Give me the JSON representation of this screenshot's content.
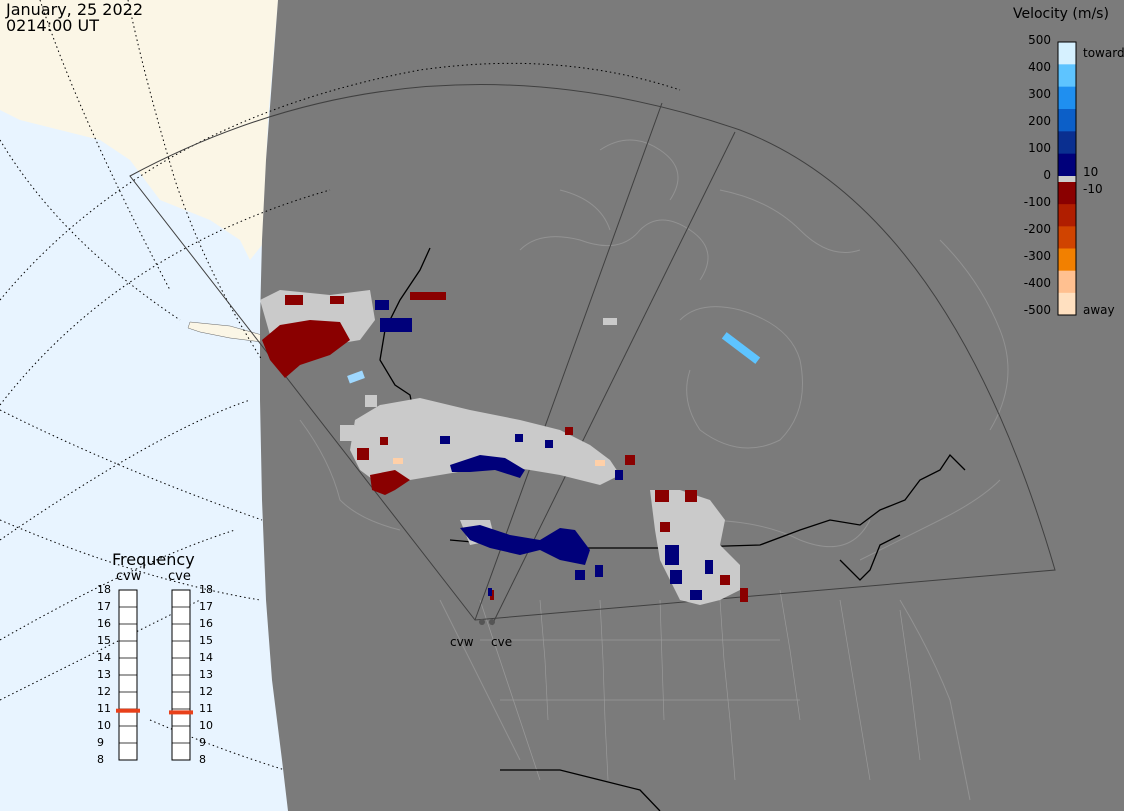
{
  "header": {
    "date": "January, 25 2022",
    "time": "0214:00 UT"
  },
  "colorbar": {
    "title": "Velocity (m/s)",
    "ticks": [
      "500",
      "400",
      "300",
      "200",
      "100",
      "0",
      "-100",
      "-200",
      "-300",
      "-400",
      "-500"
    ],
    "inner_ticks": [
      "10",
      "-10"
    ],
    "toward_label": "toward",
    "away_label": "away",
    "colors": [
      "#d6f1ff",
      "#5ec4ff",
      "#1f8ff0",
      "#0c5fc8",
      "#0a2f90",
      "#00007a",
      "#8a0000",
      "#b01e00",
      "#d04400",
      "#f28000",
      "#ffc090",
      "#ffe0c0"
    ]
  },
  "frequency": {
    "title": "Frequency",
    "radars": [
      {
        "name": "cvw",
        "value_mhz": 10.9
      },
      {
        "name": "cve",
        "value_mhz": 10.8
      }
    ],
    "scale": [
      "18",
      "17",
      "16",
      "15",
      "14",
      "13",
      "12",
      "11",
      "10",
      "9",
      "8"
    ],
    "marker_color": "#e8401a"
  },
  "map": {
    "ocean_color": "#e8f4ff",
    "land_color": "#7b7b7b",
    "radar_sites": [
      "cvw",
      "cve"
    ]
  }
}
